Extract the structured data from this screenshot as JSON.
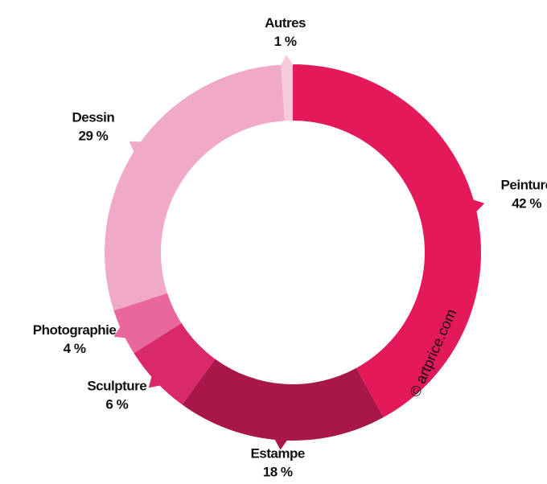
{
  "chart_data": {
    "type": "donut",
    "categories": [
      "Peinture",
      "Estampe",
      "Sculpture",
      "Photographie",
      "Dessin",
      "Autres"
    ],
    "values": [
      42,
      18,
      6,
      4,
      29,
      1
    ],
    "value_labels": [
      "42 %",
      "18 %",
      "6 %",
      "4 %",
      "29 %",
      "1 %"
    ],
    "colors": [
      "#e3195a",
      "#a8164a",
      "#d9296a",
      "#e9679c",
      "#f0a9c7",
      "#f7cadc"
    ],
    "watermark": "© artprice.com"
  }
}
